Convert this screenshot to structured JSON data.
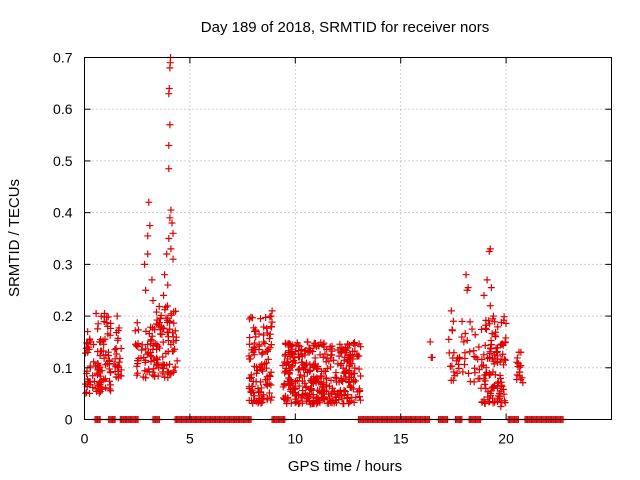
{
  "chart_data": {
    "type": "scatter",
    "title": "Day 189 of 2018, SRMTID for receiver nors",
    "xlabel": "GPS time / hours",
    "ylabel": "SRMTID / TECUs",
    "xlim": [
      0,
      25
    ],
    "ylim": [
      0,
      0.7
    ],
    "xticks": [
      0,
      5,
      10,
      15,
      20
    ],
    "xtick_labels": [
      "0",
      "5",
      "10",
      "15",
      "20"
    ],
    "yticks": [
      0,
      0.1,
      0.2,
      0.3,
      0.4,
      0.5,
      0.6,
      0.7
    ],
    "ytick_labels": [
      "0",
      "0.1",
      "0.2",
      "0.3",
      "0.4",
      "0.5",
      "0.6",
      "0.7"
    ],
    "grid": true,
    "marker": "+",
    "color": "#e00000",
    "zero_segments": [
      [
        0.5,
        0.75
      ],
      [
        1.15,
        1.45
      ],
      [
        1.7,
        2.55
      ],
      [
        3.25,
        3.55
      ],
      [
        4.3,
        7.9
      ],
      [
        8.9,
        9.5
      ],
      [
        13.0,
        16.4
      ],
      [
        16.8,
        17.25
      ],
      [
        17.6,
        17.9
      ],
      [
        18.25,
        18.8
      ],
      [
        20.1,
        20.6
      ],
      [
        20.9,
        22.7
      ]
    ],
    "clusters": [
      {
        "x": [
          0.0,
          0.8
        ],
        "y": [
          0.05,
          0.16
        ],
        "n": 45
      },
      {
        "x": [
          0.6,
          1.25
        ],
        "y": [
          0.05,
          0.2
        ],
        "n": 50
      },
      {
        "x": [
          1.4,
          1.75
        ],
        "y": [
          0.08,
          0.19
        ],
        "n": 25
      },
      {
        "x": [
          2.4,
          3.5
        ],
        "y": [
          0.08,
          0.2
        ],
        "n": 55
      },
      {
        "x": [
          3.4,
          4.4
        ],
        "y": [
          0.08,
          0.22
        ],
        "n": 75
      },
      {
        "x": [
          7.8,
          8.9
        ],
        "y": [
          0.03,
          0.2
        ],
        "n": 110
      },
      {
        "x": [
          9.4,
          13.1
        ],
        "y": [
          0.03,
          0.15
        ],
        "n": 380
      },
      {
        "x": [
          17.2,
          18.8
        ],
        "y": [
          0.07,
          0.2
        ],
        "n": 45
      },
      {
        "x": [
          18.8,
          20.0
        ],
        "y": [
          0.03,
          0.2
        ],
        "n": 110
      },
      {
        "x": [
          20.5,
          20.8
        ],
        "y": [
          0.07,
          0.13
        ],
        "n": 15
      }
    ],
    "points": [
      [
        0.15,
        0.17
      ],
      [
        0.2,
        0.14
      ],
      [
        0.3,
        0.15
      ],
      [
        0.55,
        0.205
      ],
      [
        0.65,
        0.185
      ],
      [
        0.95,
        0.205
      ],
      [
        1.1,
        0.18
      ],
      [
        1.55,
        0.2
      ],
      [
        3.05,
        0.42
      ],
      [
        3.1,
        0.375
      ],
      [
        3.0,
        0.355
      ],
      [
        3.0,
        0.32
      ],
      [
        2.9,
        0.25
      ],
      [
        3.2,
        0.27
      ],
      [
        3.25,
        0.23
      ],
      [
        2.85,
        0.3
      ],
      [
        3.6,
        0.195
      ],
      [
        3.75,
        0.24
      ],
      [
        3.8,
        0.28
      ],
      [
        3.9,
        0.32
      ],
      [
        4.0,
        0.35
      ],
      [
        4.05,
        0.39
      ],
      [
        4.1,
        0.405
      ],
      [
        4.15,
        0.38
      ],
      [
        4.2,
        0.36
      ],
      [
        4.1,
        0.33
      ],
      [
        4.2,
        0.31
      ],
      [
        3.95,
        0.26
      ],
      [
        4.0,
        0.485
      ],
      [
        4.0,
        0.53
      ],
      [
        4.05,
        0.57
      ],
      [
        4.0,
        0.63
      ],
      [
        4.02,
        0.64
      ],
      [
        4.05,
        0.68
      ],
      [
        4.07,
        0.69
      ],
      [
        4.08,
        0.7
      ],
      [
        8.1,
        0.17
      ],
      [
        8.35,
        0.195
      ],
      [
        8.9,
        0.21
      ],
      [
        8.85,
        0.2
      ],
      [
        16.4,
        0.15
      ],
      [
        16.45,
        0.12
      ],
      [
        16.5,
        0.12
      ],
      [
        17.4,
        0.21
      ],
      [
        17.5,
        0.19
      ],
      [
        18.1,
        0.28
      ],
      [
        18.15,
        0.25
      ],
      [
        18.2,
        0.255
      ],
      [
        18.95,
        0.24
      ],
      [
        19.1,
        0.27
      ],
      [
        19.2,
        0.325
      ],
      [
        19.25,
        0.33
      ],
      [
        19.3,
        0.255
      ],
      [
        19.25,
        0.22
      ],
      [
        19.4,
        0.2
      ],
      [
        19.6,
        0.07
      ],
      [
        19.7,
        0.045
      ],
      [
        19.75,
        0.025
      ],
      [
        20.7,
        0.13
      ]
    ]
  }
}
